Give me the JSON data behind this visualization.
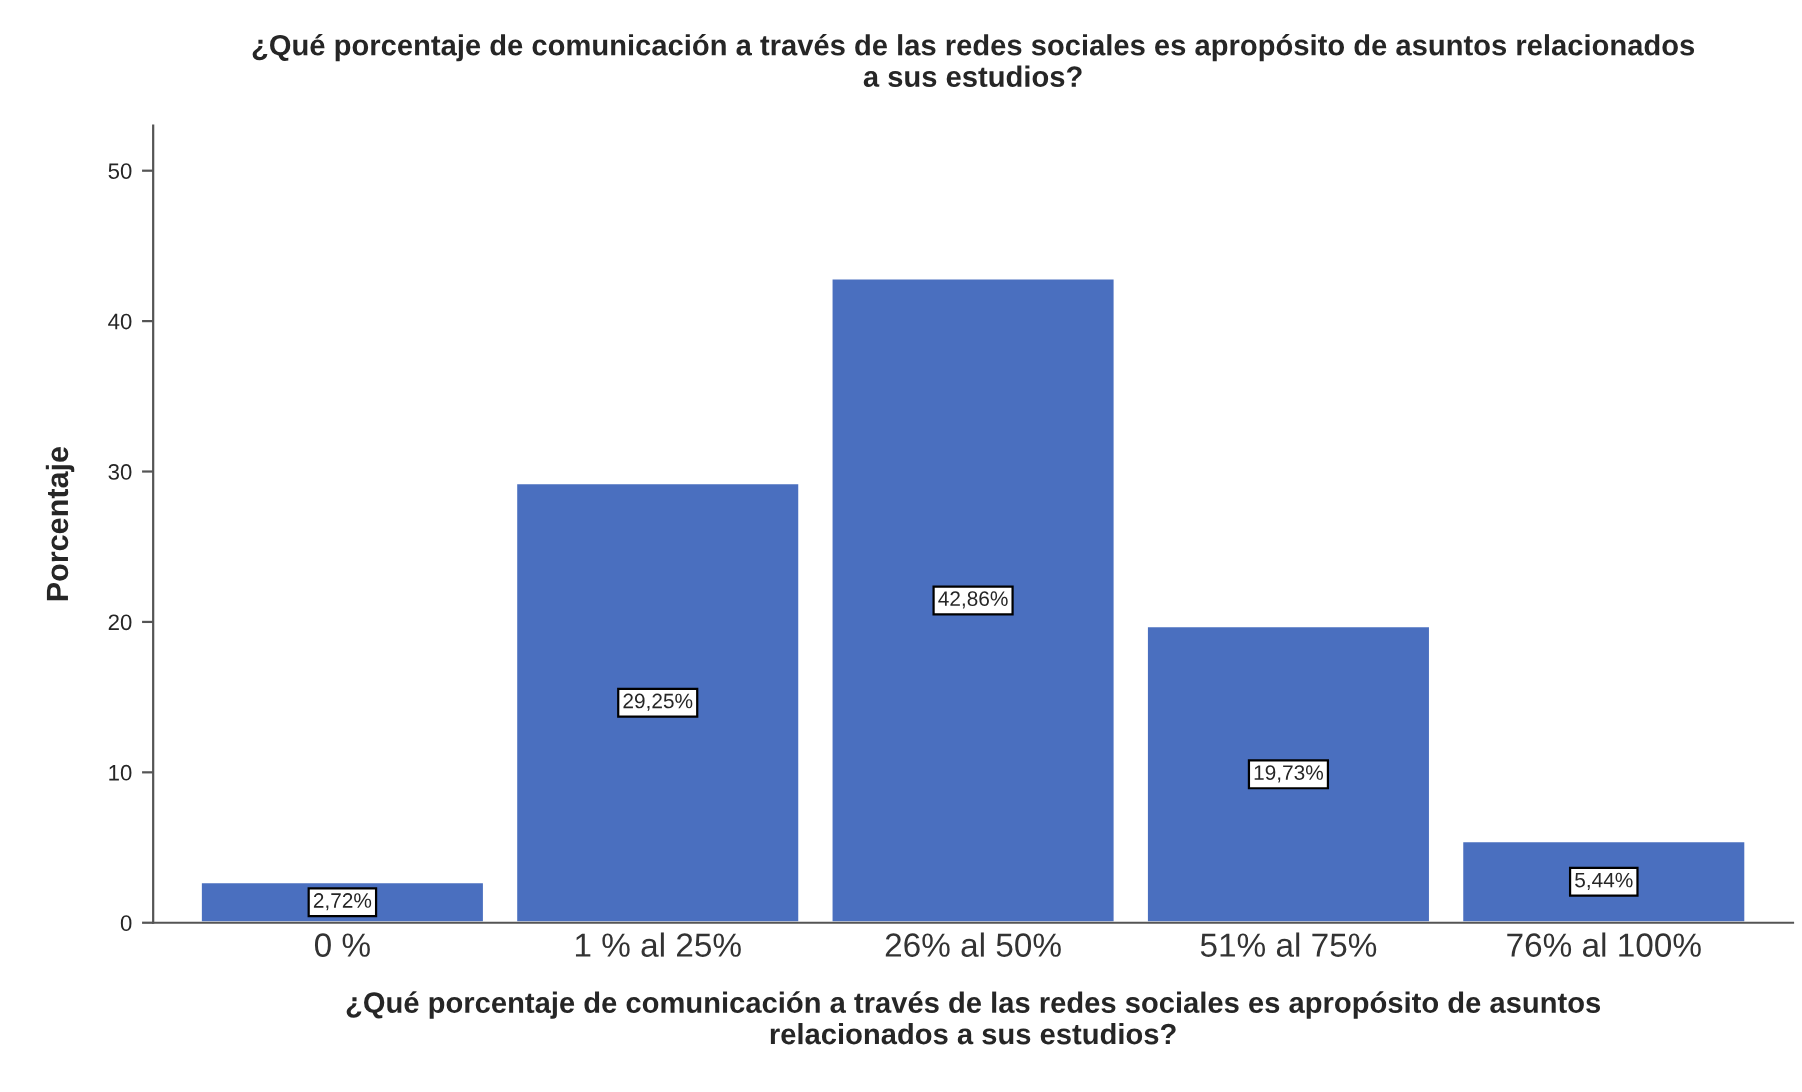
{
  "chart_data": {
    "type": "bar",
    "title": "¿Qué porcentaje de comunicación a través de las redes sociales es apropósito de asuntos relacionados\na sus estudios?",
    "xlabel": "¿Qué porcentaje de comunicación a través de las redes sociales es apropósito de asuntos\nrelacionados a sus estudios?",
    "ylabel": "Porcentaje",
    "categories": [
      "0 %",
      "1 % al 25%",
      "26% al 50%",
      "51% al 75%",
      "76% al 100%"
    ],
    "values": [
      2.72,
      29.25,
      42.86,
      19.73,
      5.44
    ],
    "value_labels": [
      "2,72%",
      "29,25%",
      "42,86%",
      "19,73%",
      "5,44%"
    ],
    "color": "#4a6fbf",
    "ylim": [
      0,
      53
    ],
    "yticks": [
      0,
      10,
      20,
      30,
      40,
      50
    ],
    "grid": false
  }
}
